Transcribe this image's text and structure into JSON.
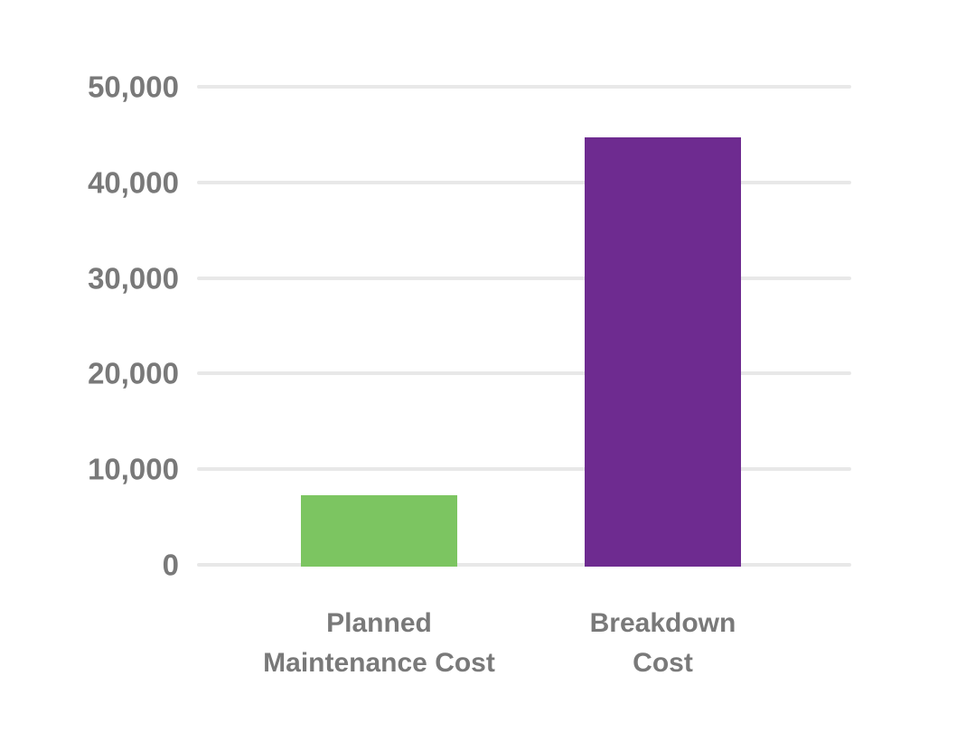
{
  "chart_data": {
    "type": "bar",
    "title": "",
    "xlabel": "",
    "ylabel": "",
    "categories": [
      {
        "lines": [
          "Planned",
          "Maintenance Cost"
        ]
      },
      {
        "lines": [
          "Breakdown",
          "Cost"
        ]
      }
    ],
    "values": [
      7300,
      44700
    ],
    "bar_colors": [
      "#7cc561",
      "#6e2b90"
    ],
    "ylim": [
      0,
      50000
    ],
    "yticks": [
      {
        "value": 0,
        "label": "0"
      },
      {
        "value": 10000,
        "label": "10,000"
      },
      {
        "value": 20000,
        "label": "20,000"
      },
      {
        "value": 30000,
        "label": "30,000"
      },
      {
        "value": 40000,
        "label": "40,000"
      },
      {
        "value": 50000,
        "label": "50,000"
      }
    ],
    "grid": true,
    "legend": false
  },
  "colors": {
    "background": "#ffffff",
    "gridline": "#e8e8e8",
    "label_text": "#797979"
  }
}
